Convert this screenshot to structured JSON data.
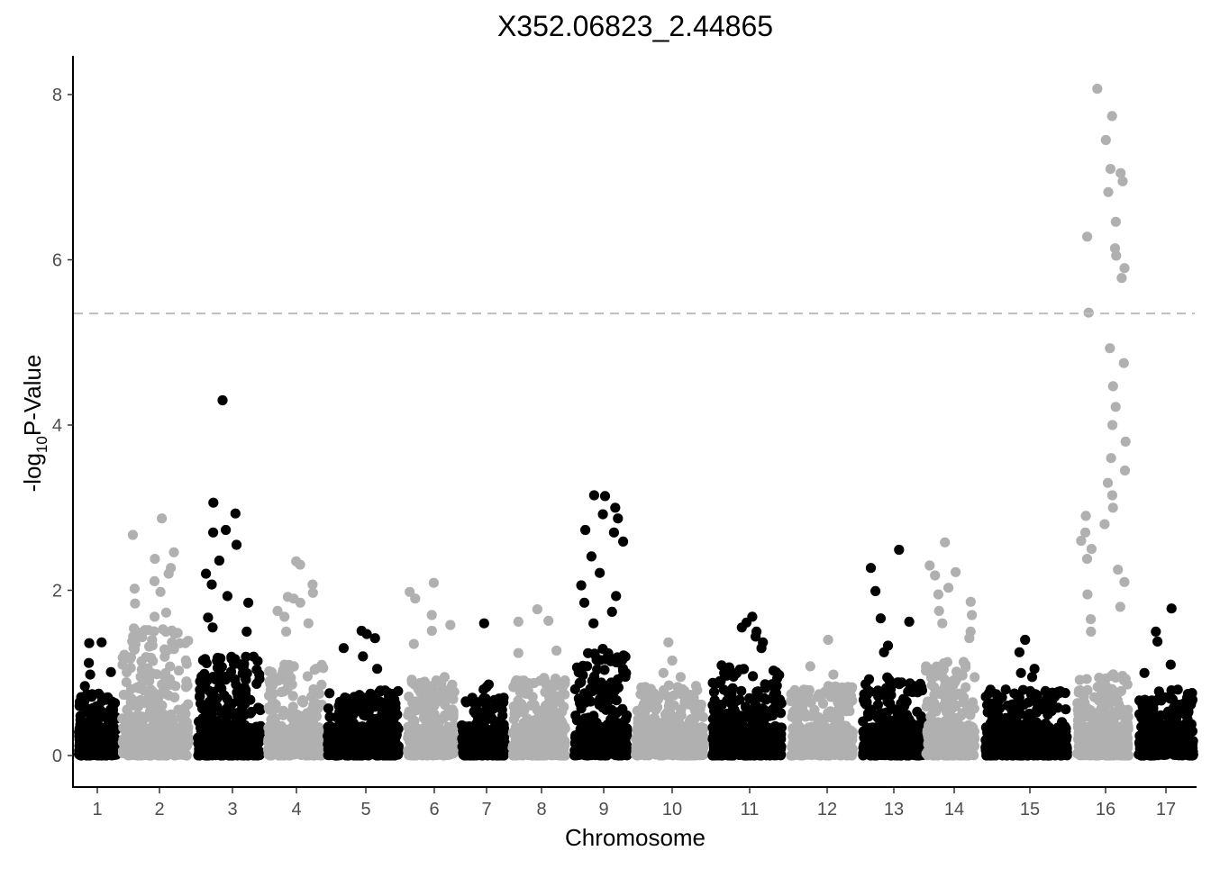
{
  "chart_data": {
    "type": "scatter",
    "subtype": "manhattan",
    "title": "X352.06823_2.44865",
    "xlabel": "Chromosome",
    "ylabel_prefix": "-log",
    "ylabel_subscript": "10",
    "ylabel_suffix": "P-Value",
    "ylim": [
      -0.35,
      8.45
    ],
    "yticks": [
      0,
      2,
      4,
      6,
      8
    ],
    "threshold": 5.35,
    "threshold_color": "#bdbdbd",
    "colors": {
      "odd": "#000000",
      "even": "#b0b0b0"
    },
    "grid": false,
    "legend": "none",
    "chromosomes": [
      {
        "label": "1",
        "typical_max": 0.75,
        "tall_points": [
          1.37,
          1.36,
          1.12,
          1.01,
          0.98,
          0.84
        ]
      },
      {
        "label": "2",
        "typical_max": 1.55,
        "tall_points": [
          2.87,
          2.67,
          2.46,
          2.38,
          2.27,
          2.2,
          2.11,
          2.02,
          1.98,
          1.84,
          1.73,
          1.68
        ]
      },
      {
        "label": "3",
        "typical_max": 1.2,
        "tall_points": [
          4.3,
          3.06,
          2.93,
          2.73,
          2.7,
          2.55,
          2.36,
          2.2,
          2.07,
          1.93,
          1.85,
          1.67,
          1.55,
          1.5
        ]
      },
      {
        "label": "4",
        "typical_max": 1.1,
        "tall_points": [
          2.35,
          2.31,
          2.07,
          1.97,
          1.92,
          1.9,
          1.85,
          1.75,
          1.68,
          1.6,
          1.5
        ]
      },
      {
        "label": "5",
        "typical_max": 0.8,
        "tall_points": [
          1.51,
          1.47,
          1.42,
          1.3,
          1.2,
          1.05
        ]
      },
      {
        "label": "6",
        "typical_max": 0.95,
        "tall_points": [
          2.09,
          1.98,
          1.9,
          1.7,
          1.58,
          1.51,
          1.35
        ]
      },
      {
        "label": "7",
        "typical_max": 0.7,
        "tall_points": [
          1.6,
          0.86,
          0.83,
          0.8
        ]
      },
      {
        "label": "8",
        "typical_max": 0.95,
        "tall_points": [
          1.77,
          1.63,
          1.62,
          1.27,
          1.24
        ]
      },
      {
        "label": "9",
        "typical_max": 1.3,
        "tall_points": [
          3.15,
          3.14,
          3.0,
          2.92,
          2.87,
          2.73,
          2.7,
          2.59,
          2.41,
          2.21,
          2.06,
          1.93,
          1.85,
          1.74,
          1.6
        ]
      },
      {
        "label": "10",
        "typical_max": 0.85,
        "tall_points": [
          1.37,
          1.15,
          1.0,
          0.95
        ]
      },
      {
        "label": "11",
        "typical_max": 1.1,
        "tall_points": [
          1.68,
          1.61,
          1.55,
          1.5,
          1.44,
          1.37,
          1.3
        ]
      },
      {
        "label": "12",
        "typical_max": 0.85,
        "tall_points": [
          1.4,
          1.08,
          0.98
        ]
      },
      {
        "label": "13",
        "typical_max": 0.95,
        "tall_points": [
          2.49,
          2.27,
          1.99,
          1.66,
          1.62,
          1.33,
          1.25
        ]
      },
      {
        "label": "14",
        "typical_max": 1.15,
        "tall_points": [
          2.58,
          2.3,
          2.22,
          2.18,
          2.03,
          1.95,
          1.86,
          1.75,
          1.7,
          1.6,
          1.5,
          1.42
        ]
      },
      {
        "label": "15",
        "typical_max": 0.8,
        "tall_points": [
          1.4,
          1.25,
          1.05,
          1.0,
          0.95
        ]
      },
      {
        "label": "16",
        "typical_max": 1.0,
        "tall_points": [
          8.07,
          7.74,
          7.45,
          7.1,
          7.05,
          6.95,
          6.82,
          6.46,
          6.28,
          6.14,
          6.05,
          5.9,
          5.78,
          5.36,
          4.93,
          4.75,
          4.47,
          4.22,
          4.0,
          3.8,
          3.6,
          3.45,
          3.3,
          3.15,
          3.0,
          2.9,
          2.8,
          2.7,
          2.6,
          2.5,
          2.38,
          2.25,
          2.1,
          1.95,
          1.8,
          1.65,
          1.5
        ]
      },
      {
        "label": "17",
        "typical_max": 0.8,
        "tall_points": [
          1.78,
          1.5,
          1.38,
          1.1,
          1.0
        ]
      }
    ]
  }
}
